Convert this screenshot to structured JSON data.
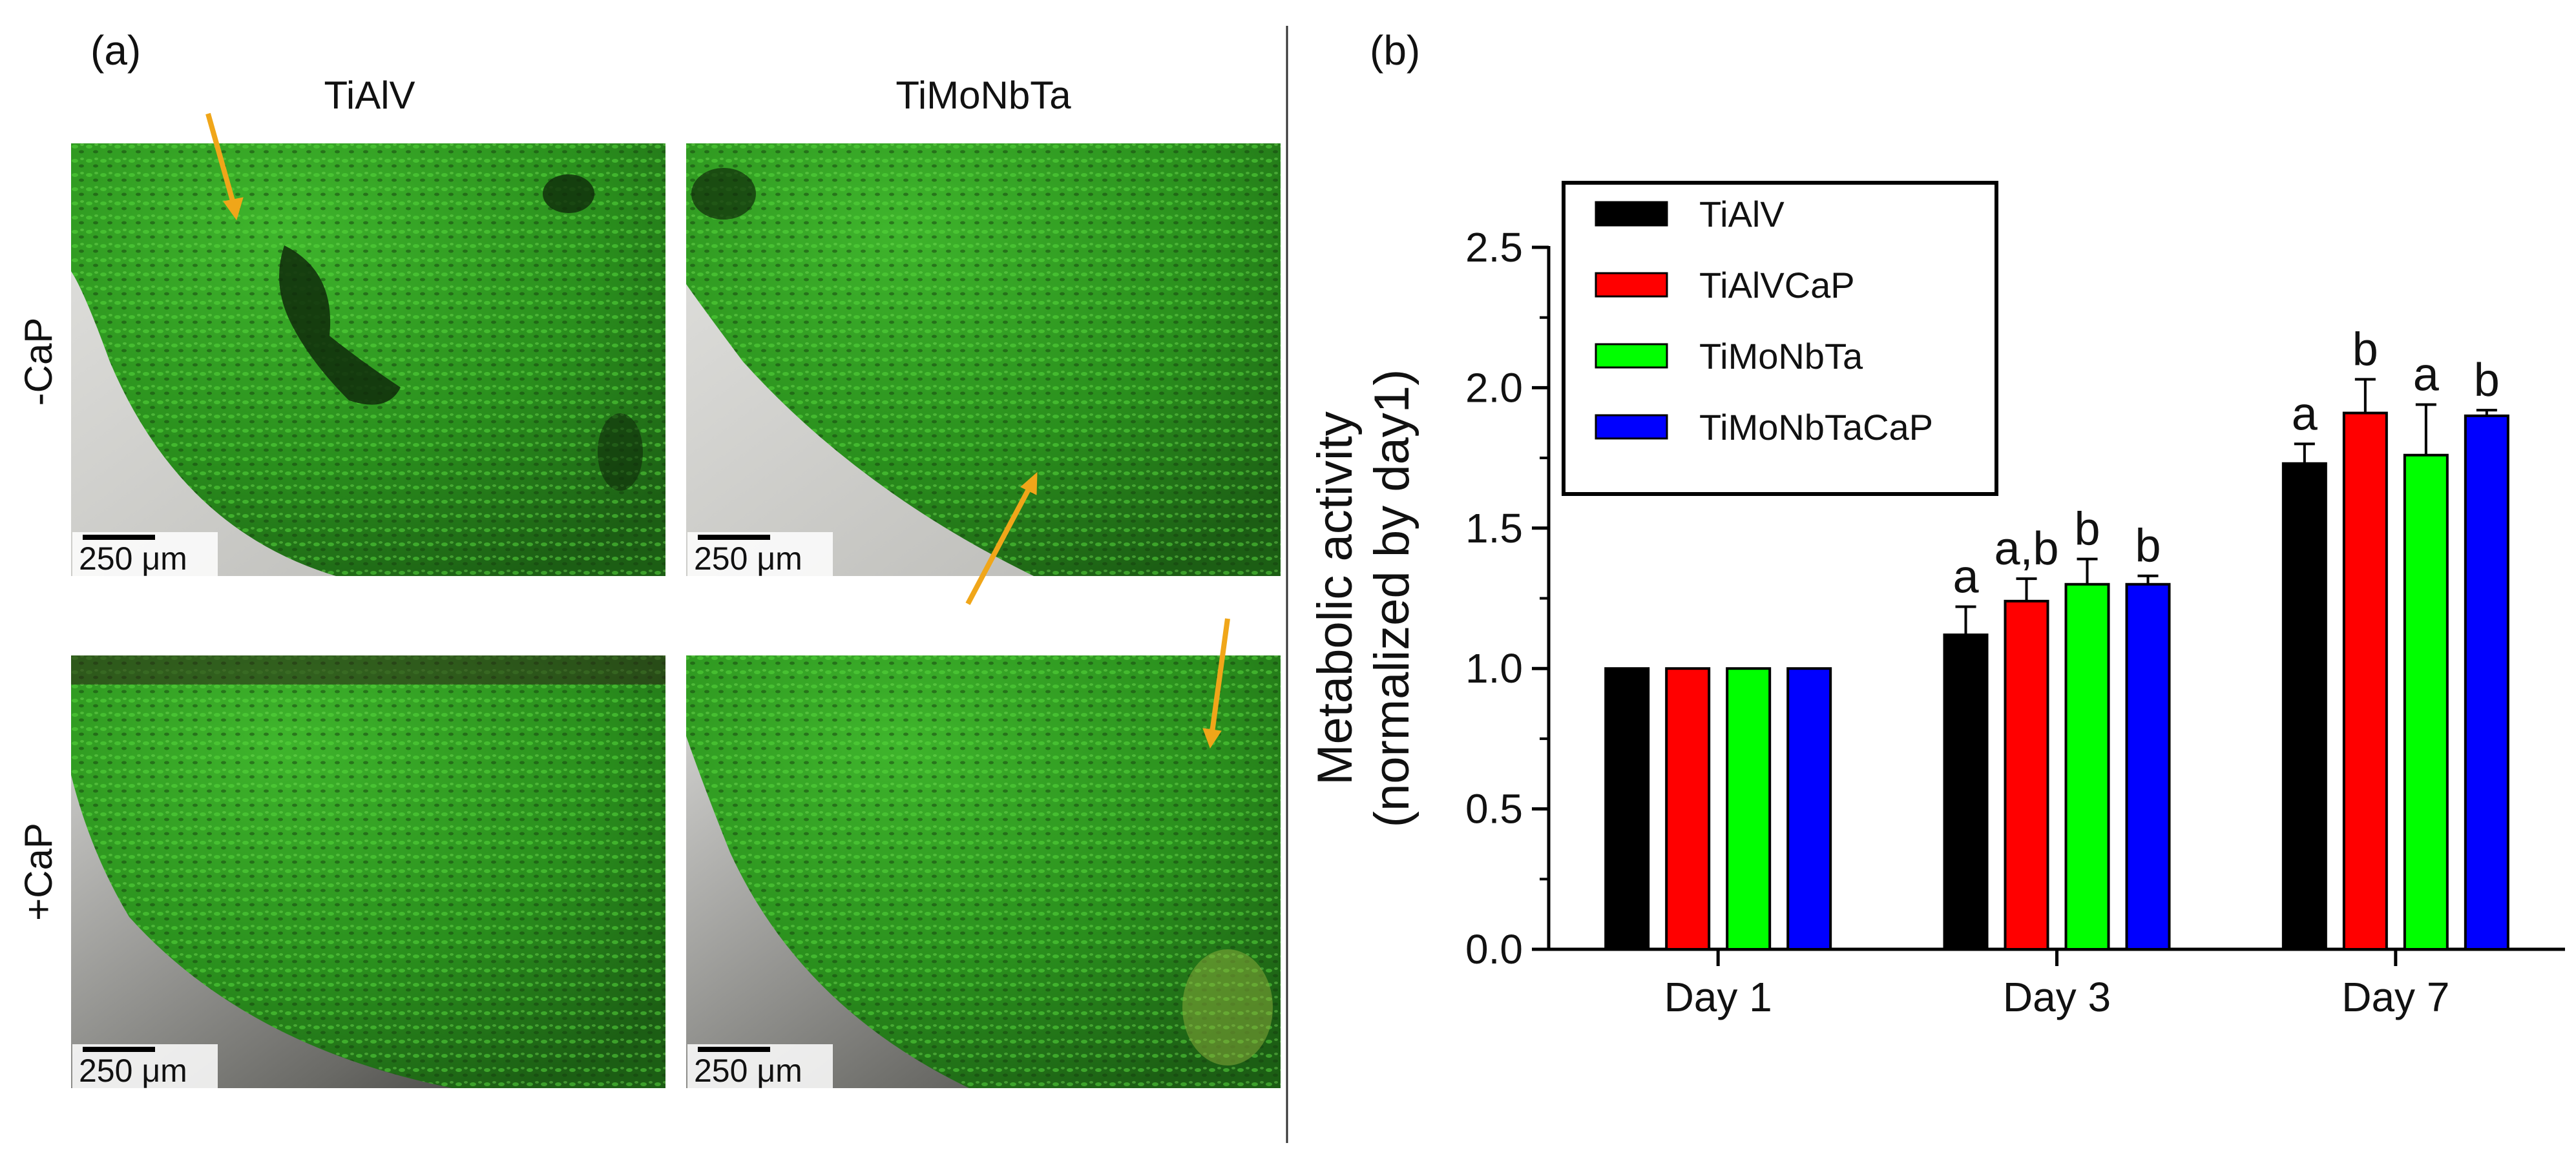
{
  "panel_a": {
    "label": "(a)",
    "col_titles": [
      "TiAlV",
      "TiMoNbTa"
    ],
    "row_titles": [
      "-CaP",
      "+CaP"
    ],
    "scale_bar": "250 μm",
    "image_description_colors": {
      "cells": "#2e9a1e",
      "background": "#1e3a12",
      "substrate": "#cfcfcc",
      "arrow": "#f0a619"
    }
  },
  "chart_data": {
    "label": "(b)",
    "type": "bar",
    "title": "",
    "ylabel_line1": "Metabolic activity",
    "ylabel_line2": "(normalized by day1)",
    "xlabel": "",
    "ylim": [
      0.0,
      2.5
    ],
    "yticks": [
      "0.0",
      "0.5",
      "1.0",
      "1.5",
      "2.0",
      "2.5"
    ],
    "categories": [
      "Day 1",
      "Day 3",
      "Day 7"
    ],
    "series": [
      {
        "name": "TiAlV",
        "color": "#000000",
        "values": [
          1.0,
          1.12,
          1.73
        ],
        "errors": [
          0.0,
          0.1,
          0.07
        ],
        "labels": [
          "",
          "a",
          "a"
        ]
      },
      {
        "name": "TiAlVCaP",
        "color": "#ff0000",
        "values": [
          1.0,
          1.24,
          1.91
        ],
        "errors": [
          0.0,
          0.08,
          0.12
        ],
        "labels": [
          "",
          "a,b",
          "b"
        ]
      },
      {
        "name": "TiMoNbTa",
        "color": "#00ff00",
        "values": [
          1.0,
          1.3,
          1.76
        ],
        "errors": [
          0.0,
          0.09,
          0.18
        ],
        "labels": [
          "",
          "b",
          "a"
        ]
      },
      {
        "name": "TiMoNbTaCaP",
        "color": "#0000ff",
        "values": [
          1.0,
          1.3,
          1.9
        ],
        "errors": [
          0.0,
          0.03,
          0.02
        ],
        "labels": [
          "",
          "b",
          "b"
        ]
      }
    ],
    "legend_position": "top-left"
  }
}
